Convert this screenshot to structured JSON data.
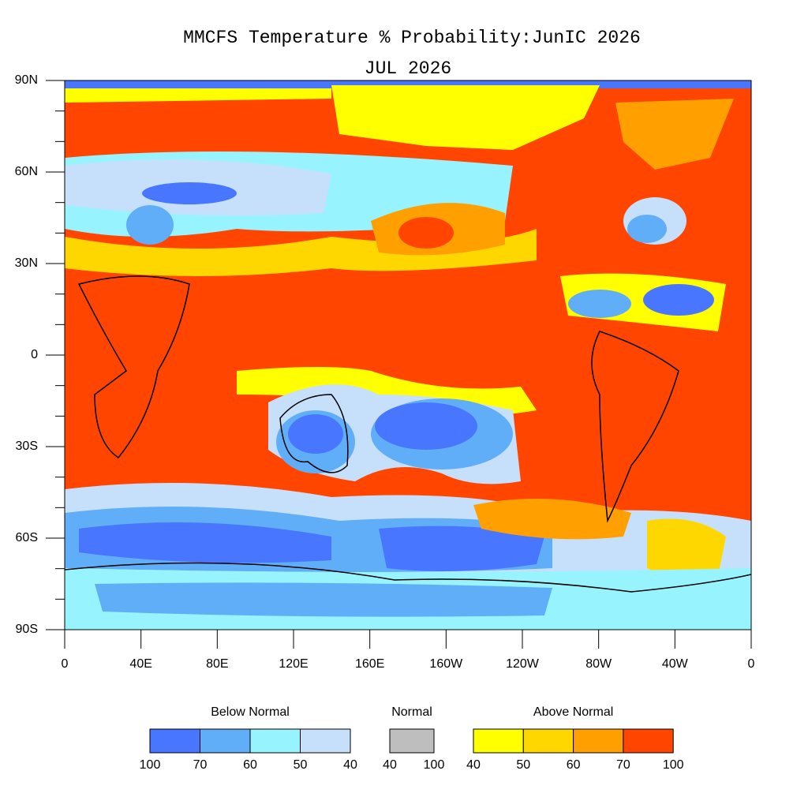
{
  "header": {
    "title": "MMCFS Temperature % Probability:JunIC 2026",
    "subtitle": "JUL 2026"
  },
  "axes": {
    "lat_labels": [
      "90N",
      "60N",
      "30N",
      "0",
      "30S",
      "60S",
      "90S"
    ],
    "lon_labels": [
      "0",
      "40E",
      "80E",
      "120E",
      "160E",
      "160W",
      "120W",
      "80W",
      "40W",
      "0"
    ]
  },
  "legend": {
    "groups": [
      {
        "name": "Below Normal",
        "colors": [
          "#4876ff",
          "#60aef8",
          "#97f4fe",
          "#c6e0fb"
        ],
        "bounds": [
          100,
          70,
          60,
          50,
          40
        ]
      },
      {
        "name": "Normal",
        "colors": [
          "#bebebe"
        ],
        "bounds": [
          40,
          100
        ]
      },
      {
        "name": "Above Normal",
        "colors": [
          "#ffff00",
          "#ffd700",
          "#ffa000",
          "#ff4500"
        ],
        "bounds": [
          40,
          50,
          60,
          70,
          100
        ]
      }
    ]
  }
}
